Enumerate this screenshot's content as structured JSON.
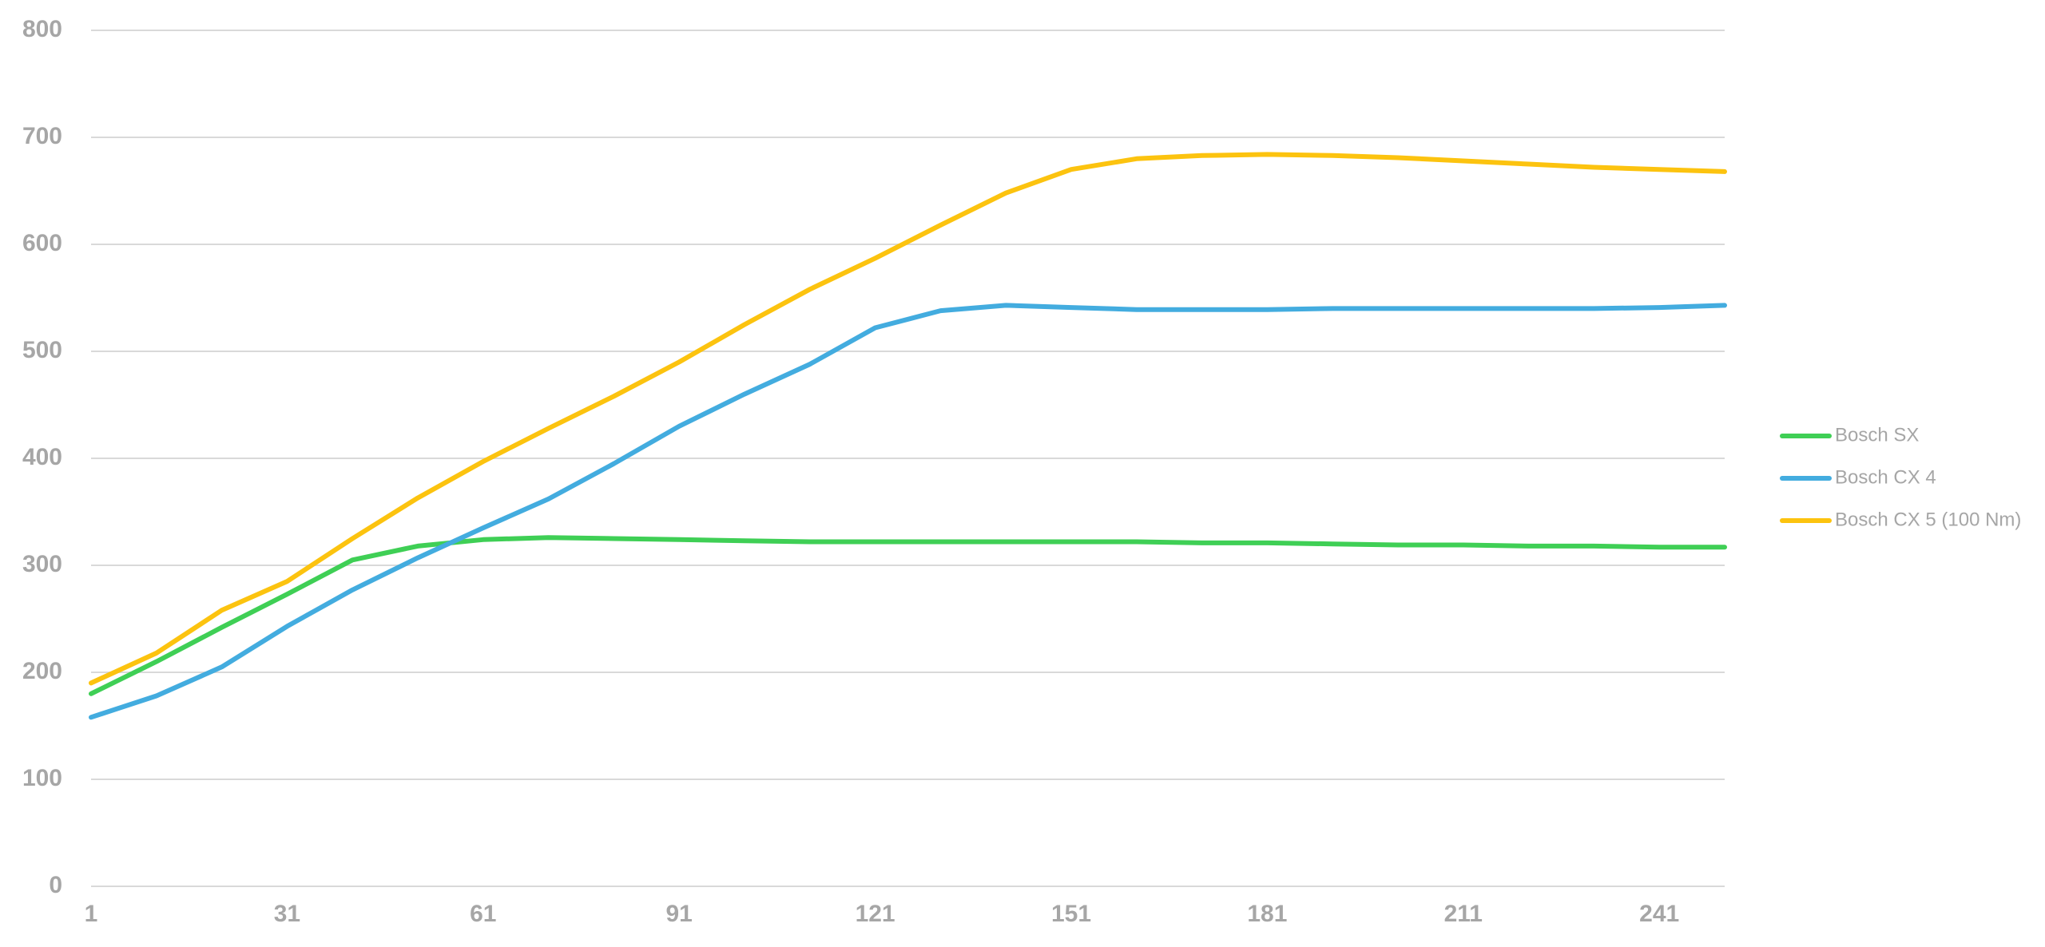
{
  "chart_data": {
    "type": "line",
    "x": [
      1,
      11,
      21,
      31,
      41,
      51,
      61,
      71,
      81,
      91,
      101,
      111,
      121,
      131,
      141,
      151,
      161,
      171,
      181,
      191,
      201,
      211,
      221,
      231,
      241,
      251
    ],
    "series": [
      {
        "name": "Bosch SX",
        "color": "#3fcf55",
        "values": [
          180,
          210,
          242,
          273,
          305,
          318,
          324,
          326,
          325,
          324,
          323,
          322,
          322,
          322,
          322,
          322,
          322,
          321,
          321,
          320,
          319,
          319,
          318,
          318,
          317,
          317
        ]
      },
      {
        "name": "Bosch CX 4",
        "color": "#43acdf",
        "values": [
          158,
          178,
          205,
          243,
          277,
          307,
          335,
          362,
          395,
          430,
          460,
          488,
          522,
          538,
          543,
          541,
          539,
          539,
          539,
          540,
          540,
          540,
          540,
          540,
          541,
          543
        ]
      },
      {
        "name": "Bosch CX 5 (100 Nm)",
        "color": "#fcc30f",
        "values": [
          190,
          218,
          258,
          285,
          325,
          363,
          397,
          428,
          458,
          490,
          525,
          558,
          587,
          618,
          648,
          670,
          680,
          683,
          684,
          683,
          681,
          678,
          675,
          672,
          670,
          668
        ]
      }
    ],
    "xlim": [
      1,
      251
    ],
    "xticks": [
      1,
      31,
      61,
      91,
      121,
      151,
      181,
      211,
      241
    ],
    "ylim": [
      0,
      800
    ],
    "yticks": [
      0,
      100,
      200,
      300,
      400,
      500,
      600,
      700,
      800
    ],
    "grid": true,
    "legend": "right"
  }
}
